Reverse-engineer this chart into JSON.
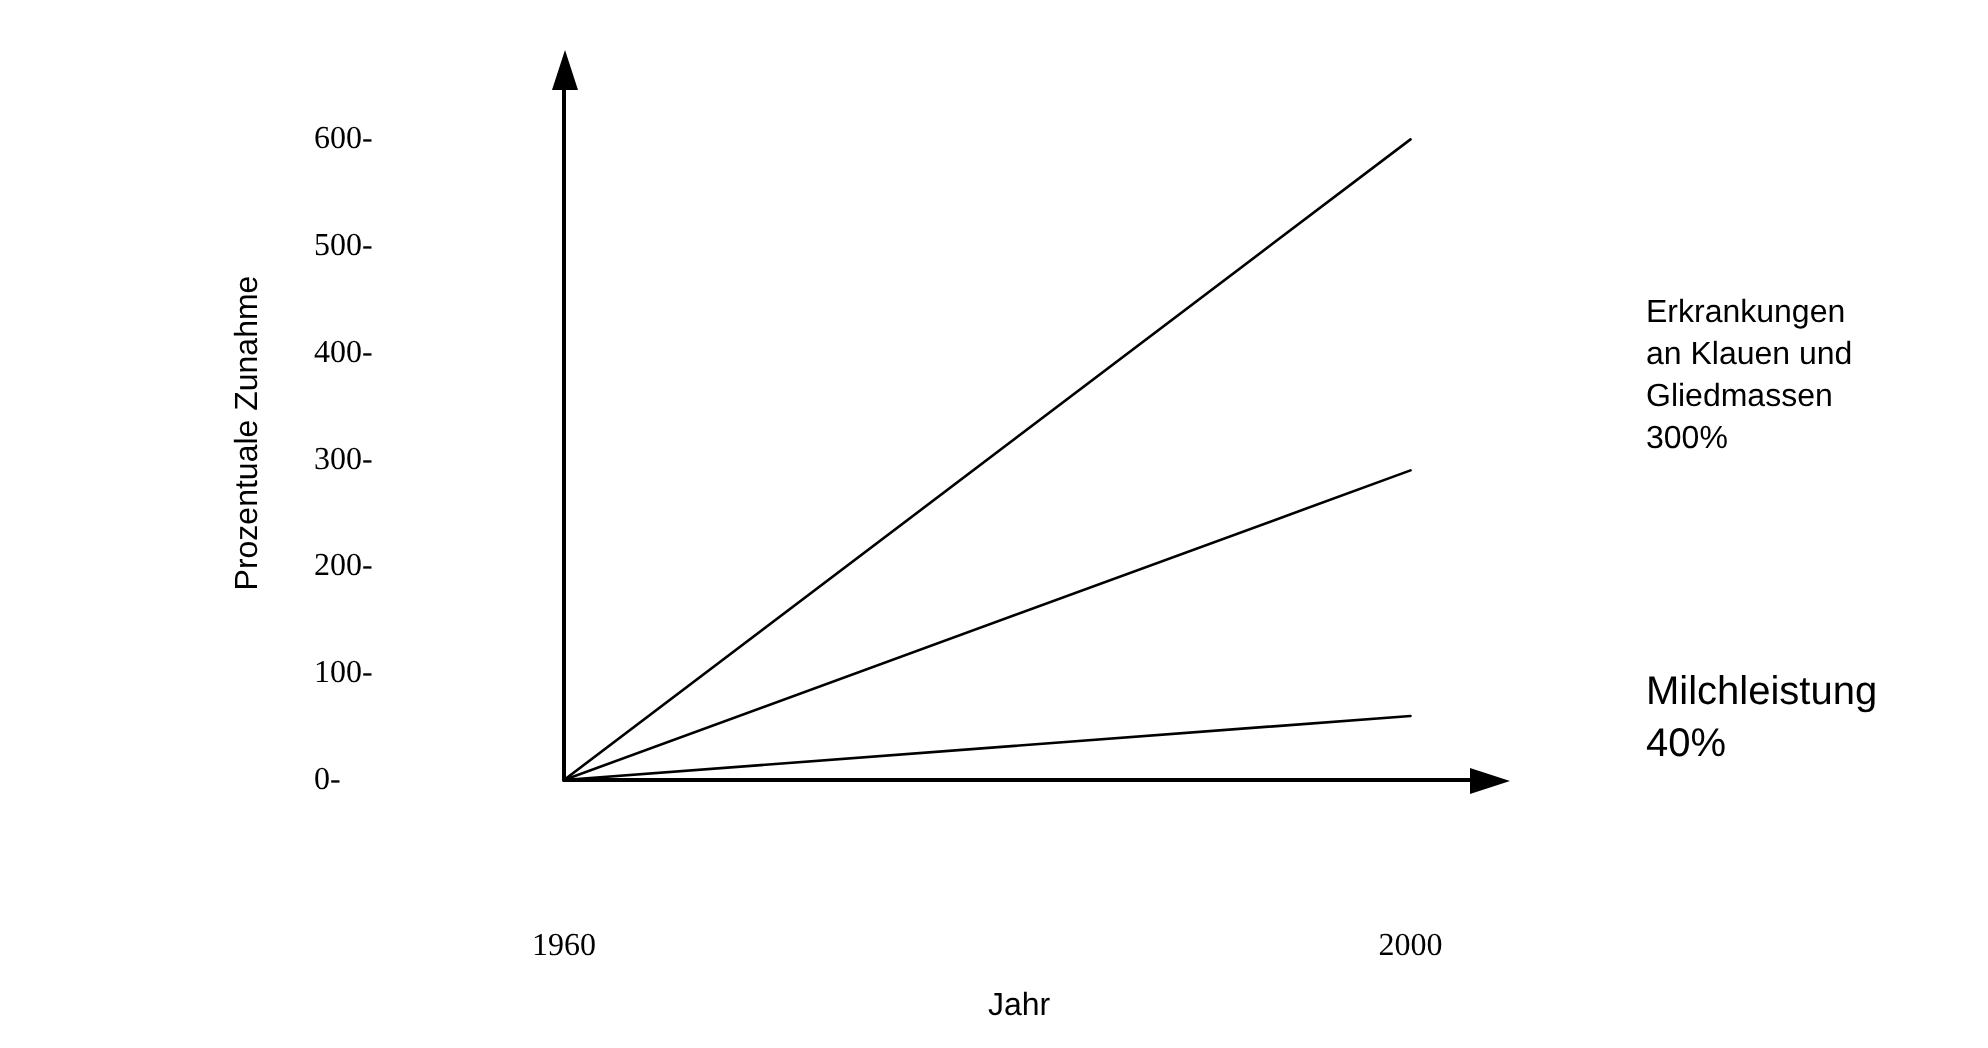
{
  "chart_data": {
    "type": "line",
    "xlabel": "Jahr",
    "ylabel": "Prozentuale Zunahme",
    "x": [
      1960,
      2000
    ],
    "series": [
      {
        "color": "#000000",
        "values": [
          0,
          600
        ]
      },
      {
        "color": "#000000",
        "values": [
          0,
          290
        ]
      },
      {
        "color": "#000000",
        "values": [
          0,
          60
        ]
      }
    ],
    "xlim": [
      1960,
      2003
    ],
    "ylim": [
      0,
      650
    ],
    "xticks": [
      1960,
      2000
    ],
    "yticks": [
      {
        "value": 0,
        "label": "0-"
      },
      {
        "value": 100,
        "label": "100-"
      },
      {
        "value": 200,
        "label": "200-"
      },
      {
        "value": 300,
        "label": "300-"
      },
      {
        "value": 400,
        "label": "400-"
      },
      {
        "value": 500,
        "label": "500-"
      },
      {
        "value": 600,
        "label": "600-"
      }
    ],
    "annotations": [
      "Erkrankungen\nan Klauen und\nGliedmassen\n300%",
      "Milchleistung\n40%"
    ],
    "grid": false,
    "marker": "none",
    "line_style": "solid"
  }
}
